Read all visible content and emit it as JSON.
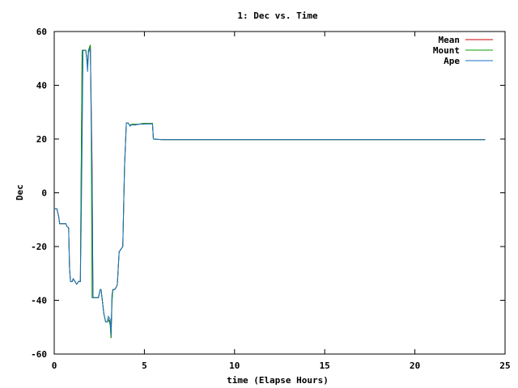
{
  "chart_data": {
    "type": "line",
    "title": "1: Dec vs. Time",
    "xlabel": "time (Elapse Hours)",
    "ylabel": "Dec",
    "xlim": [
      0,
      25
    ],
    "ylim": [
      -60,
      60
    ],
    "xticks": [
      0,
      5,
      10,
      15,
      20,
      25
    ],
    "yticks": [
      -60,
      -40,
      -20,
      0,
      20,
      40,
      60
    ],
    "grid": false,
    "legend_position": "top-right",
    "series": [
      {
        "name": "Mean",
        "color": "#cc0000",
        "points": [
          [
            0.0,
            -6
          ],
          [
            0.15,
            -6
          ],
          [
            0.25,
            -9
          ],
          [
            0.3,
            -11.5
          ],
          [
            0.65,
            -11.5
          ],
          [
            0.7,
            -12.5
          ],
          [
            0.8,
            -13
          ],
          [
            0.85,
            -28
          ],
          [
            0.9,
            -33
          ],
          [
            1.0,
            -33
          ],
          [
            1.05,
            -32
          ],
          [
            1.15,
            -33
          ],
          [
            1.25,
            -34
          ],
          [
            1.35,
            -33
          ],
          [
            1.45,
            -33
          ],
          [
            1.5,
            10
          ],
          [
            1.55,
            53
          ],
          [
            1.65,
            53
          ],
          [
            1.75,
            53
          ],
          [
            1.8,
            50
          ],
          [
            1.85,
            48
          ],
          [
            1.9,
            53
          ],
          [
            2.0,
            55
          ],
          [
            2.1,
            10
          ],
          [
            2.15,
            -39
          ],
          [
            2.35,
            -39
          ],
          [
            2.45,
            -39
          ],
          [
            2.55,
            -36
          ],
          [
            2.6,
            -36
          ],
          [
            2.65,
            -39
          ],
          [
            2.75,
            -45
          ],
          [
            2.85,
            -48
          ],
          [
            2.95,
            -48
          ],
          [
            3.0,
            -47
          ],
          [
            3.1,
            -48
          ],
          [
            3.15,
            -54
          ],
          [
            3.2,
            -40
          ],
          [
            3.25,
            -36
          ],
          [
            3.35,
            -36
          ],
          [
            3.45,
            -35
          ],
          [
            3.5,
            -34
          ],
          [
            3.6,
            -22
          ],
          [
            3.7,
            -21
          ],
          [
            3.8,
            -20
          ],
          [
            3.85,
            -5
          ],
          [
            3.9,
            10
          ],
          [
            4.0,
            26
          ],
          [
            4.1,
            26
          ],
          [
            4.2,
            25
          ],
          [
            4.3,
            25.5
          ],
          [
            4.5,
            25.5
          ],
          [
            4.7,
            25.5
          ],
          [
            4.9,
            25.8
          ],
          [
            5.1,
            25.8
          ],
          [
            5.3,
            25.8
          ],
          [
            5.45,
            25.8
          ],
          [
            5.5,
            20
          ],
          [
            6,
            19.8
          ],
          [
            10,
            19.8
          ],
          [
            15,
            19.8
          ],
          [
            20,
            19.8
          ],
          [
            23.9,
            19.8
          ]
        ]
      },
      {
        "name": "Mount",
        "color": "#00a000",
        "points": [
          [
            0.0,
            -6
          ],
          [
            0.15,
            -6
          ],
          [
            0.25,
            -9
          ],
          [
            0.3,
            -11.5
          ],
          [
            0.65,
            -11.5
          ],
          [
            0.7,
            -12.5
          ],
          [
            0.8,
            -13
          ],
          [
            0.85,
            -28
          ],
          [
            0.9,
            -33
          ],
          [
            1.0,
            -33
          ],
          [
            1.05,
            -32
          ],
          [
            1.15,
            -33
          ],
          [
            1.25,
            -34
          ],
          [
            1.35,
            -33
          ],
          [
            1.45,
            -33
          ],
          [
            1.5,
            10
          ],
          [
            1.55,
            53
          ],
          [
            1.65,
            53
          ],
          [
            1.75,
            53
          ],
          [
            1.8,
            50
          ],
          [
            1.85,
            48
          ],
          [
            1.9,
            53
          ],
          [
            2.0,
            55
          ],
          [
            2.05,
            25
          ],
          [
            2.1,
            -39
          ],
          [
            2.35,
            -39
          ],
          [
            2.45,
            -39
          ],
          [
            2.55,
            -36
          ],
          [
            2.6,
            -36
          ],
          [
            2.65,
            -39
          ],
          [
            2.75,
            -45
          ],
          [
            2.85,
            -48
          ],
          [
            2.95,
            -48
          ],
          [
            3.0,
            -47
          ],
          [
            3.1,
            -49
          ],
          [
            3.15,
            -54
          ],
          [
            3.2,
            -41
          ],
          [
            3.25,
            -36
          ],
          [
            3.35,
            -36
          ],
          [
            3.45,
            -35
          ],
          [
            3.5,
            -34
          ],
          [
            3.6,
            -22
          ],
          [
            3.7,
            -21
          ],
          [
            3.8,
            -20
          ],
          [
            3.85,
            -5
          ],
          [
            3.9,
            10
          ],
          [
            4.0,
            26
          ],
          [
            4.1,
            26
          ],
          [
            4.2,
            25
          ],
          [
            4.3,
            25.5
          ],
          [
            4.5,
            25.5
          ],
          [
            4.7,
            25.5
          ],
          [
            4.9,
            25.8
          ],
          [
            5.1,
            25.8
          ],
          [
            5.3,
            25.8
          ],
          [
            5.45,
            25.8
          ],
          [
            5.5,
            20
          ],
          [
            6,
            19.8
          ],
          [
            10,
            19.8
          ],
          [
            15,
            19.8
          ],
          [
            20,
            19.8
          ],
          [
            23.9,
            19.8
          ]
        ]
      },
      {
        "name": "Ape",
        "color": "#1a6fc4",
        "points": [
          [
            0.0,
            -6
          ],
          [
            0.15,
            -6
          ],
          [
            0.25,
            -9
          ],
          [
            0.3,
            -11.5
          ],
          [
            0.65,
            -11.5
          ],
          [
            0.7,
            -12.5
          ],
          [
            0.8,
            -13
          ],
          [
            0.85,
            -28
          ],
          [
            0.9,
            -33
          ],
          [
            1.0,
            -33
          ],
          [
            1.05,
            -32
          ],
          [
            1.15,
            -33
          ],
          [
            1.25,
            -34
          ],
          [
            1.35,
            -33
          ],
          [
            1.45,
            -33
          ],
          [
            1.5,
            -10
          ],
          [
            1.55,
            20
          ],
          [
            1.6,
            53
          ],
          [
            1.7,
            53
          ],
          [
            1.75,
            53
          ],
          [
            1.8,
            50
          ],
          [
            1.85,
            45
          ],
          [
            1.9,
            52
          ],
          [
            2.0,
            54
          ],
          [
            2.1,
            5
          ],
          [
            2.15,
            -39
          ],
          [
            2.35,
            -39
          ],
          [
            2.45,
            -39
          ],
          [
            2.55,
            -36
          ],
          [
            2.6,
            -36
          ],
          [
            2.65,
            -39
          ],
          [
            2.75,
            -45
          ],
          [
            2.85,
            -48
          ],
          [
            2.95,
            -48
          ],
          [
            3.0,
            -46
          ],
          [
            3.1,
            -47
          ],
          [
            3.15,
            -53
          ],
          [
            3.2,
            -38
          ],
          [
            3.25,
            -36
          ],
          [
            3.35,
            -36
          ],
          [
            3.45,
            -35
          ],
          [
            3.5,
            -34
          ],
          [
            3.6,
            -22
          ],
          [
            3.7,
            -21
          ],
          [
            3.8,
            -20
          ],
          [
            3.85,
            -5
          ],
          [
            3.9,
            10
          ],
          [
            4.0,
            26
          ],
          [
            4.1,
            26
          ],
          [
            4.2,
            24.8
          ],
          [
            4.3,
            25.3
          ],
          [
            4.5,
            25.2
          ],
          [
            4.7,
            25.6
          ],
          [
            4.9,
            25.5
          ],
          [
            5.1,
            25.6
          ],
          [
            5.3,
            25.6
          ],
          [
            5.45,
            25.6
          ],
          [
            5.5,
            20
          ],
          [
            6,
            19.8
          ],
          [
            10,
            19.8
          ],
          [
            15,
            19.8
          ],
          [
            20,
            19.8
          ],
          [
            23.9,
            19.8
          ]
        ]
      }
    ]
  }
}
